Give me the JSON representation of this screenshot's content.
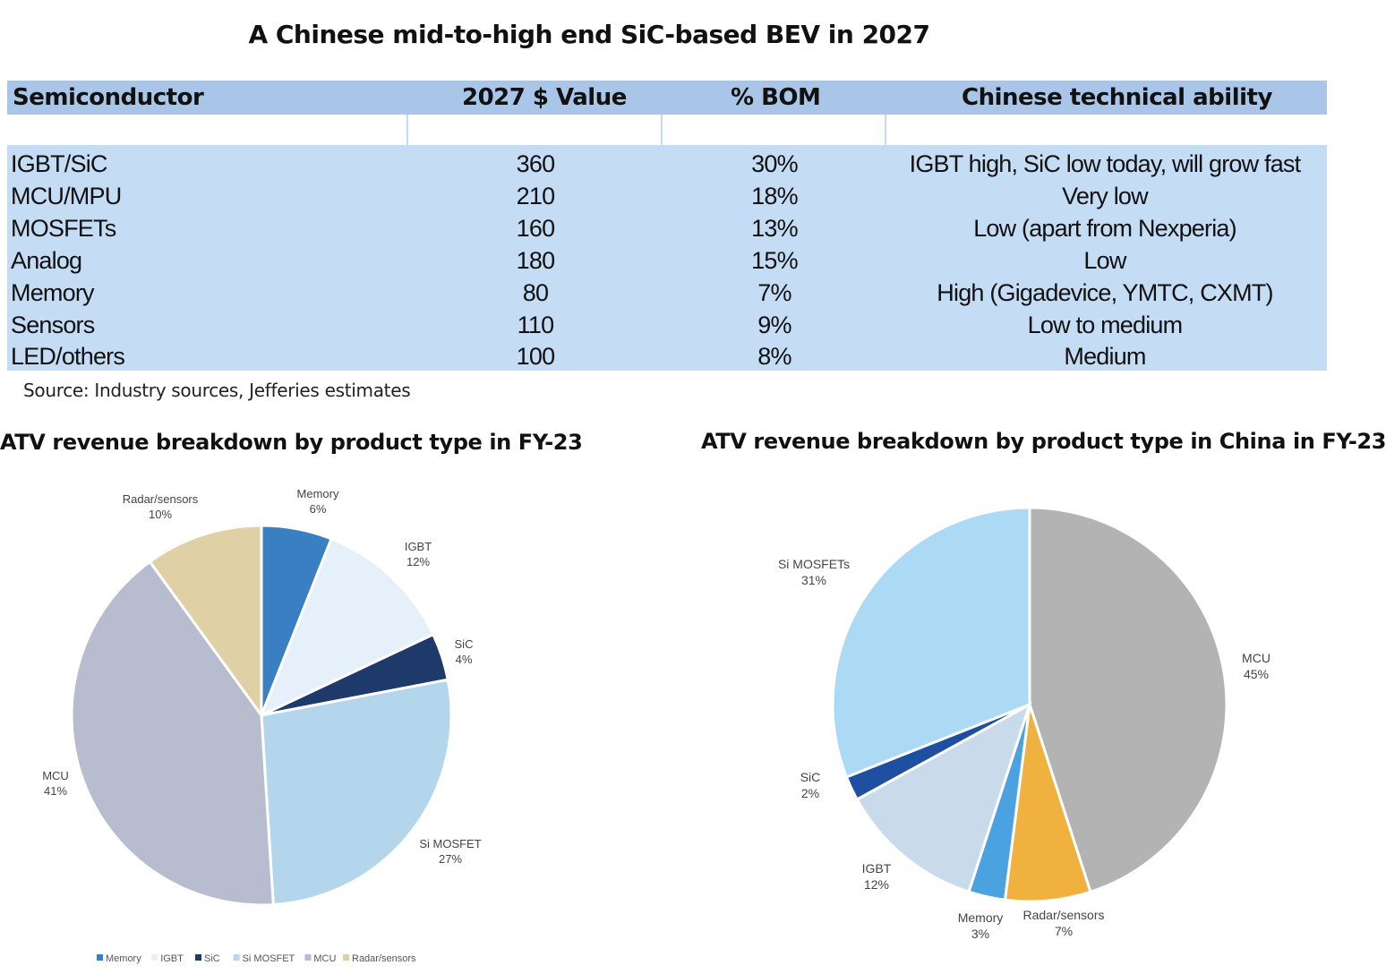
{
  "title": "A Chinese mid-to-high end SiC-based BEV in 2027",
  "table": {
    "headers": [
      "Semiconductor",
      "2027 $ Value",
      "% BOM",
      "Chinese technical ability"
    ],
    "rows": [
      [
        "IGBT/SiC",
        "360",
        "30%",
        "IGBT high, SiC low today, will grow fast"
      ],
      [
        "MCU/MPU",
        "210",
        "18%",
        "Very low"
      ],
      [
        "MOSFETs",
        "160",
        "13%",
        "Low (apart from Nexperia)"
      ],
      [
        "Analog",
        "180",
        "15%",
        "Low"
      ],
      [
        "Memory",
        "80",
        "7%",
        "High (Gigadevice, YMTC, CXMT)"
      ],
      [
        "Sensors",
        "110",
        "9%",
        "Low to medium"
      ],
      [
        "LED/others",
        "100",
        "8%",
        "Medium"
      ]
    ]
  },
  "source": "Source: Industry sources, Jefferies estimates",
  "chart_data": [
    {
      "type": "pie",
      "title": "ATV revenue breakdown by product type in FY-23",
      "series": [
        {
          "name": "Memory",
          "value": 6,
          "label": "6%",
          "color": "#3a7fc1"
        },
        {
          "name": "IGBT",
          "value": 12,
          "label": "12%",
          "color": "#e6f0fa"
        },
        {
          "name": "SiC",
          "value": 4,
          "label": "4%",
          "color": "#1e3a6b"
        },
        {
          "name": "Si MOSFET",
          "value": 27,
          "label": "27%",
          "color": "#b3d6ec"
        },
        {
          "name": "MCU",
          "value": 41,
          "label": "41%",
          "color": "#b8bccf"
        },
        {
          "name": "Radar/sensors",
          "value": 10,
          "label": "10%",
          "color": "#dfd0a6"
        }
      ],
      "legend": [
        "Memory",
        "IGBT",
        "SiC",
        "Si MOSFET",
        "MCU",
        "Radar/sensors"
      ],
      "legend_position": "bottom"
    },
    {
      "type": "pie",
      "title": "ATV revenue breakdown by product type in China in FY-23",
      "series": [
        {
          "name": "MCU",
          "value": 45,
          "label": "45%",
          "color": "#b3b3b3"
        },
        {
          "name": "Radar/sensors",
          "value": 7,
          "label": "7%",
          "color": "#f1b13f"
        },
        {
          "name": "Memory",
          "value": 3,
          "label": "3%",
          "color": "#4aa2e0"
        },
        {
          "name": "IGBT",
          "value": 12,
          "label": "12%",
          "color": "#c9daea"
        },
        {
          "name": "SiC",
          "value": 2,
          "label": "2%",
          "color": "#1e4fa0"
        },
        {
          "name": "Si MOSFETs",
          "value": 31,
          "label": "31%",
          "color": "#acdaf5"
        }
      ]
    }
  ]
}
